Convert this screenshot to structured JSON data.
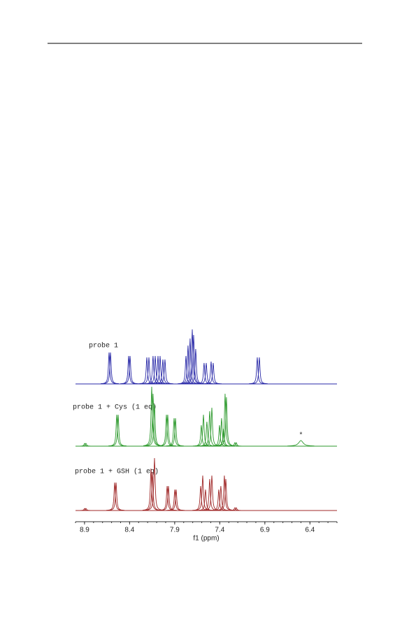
{
  "chart_data": {
    "type": "spectrum",
    "x_label": "f1 (ppm)",
    "xlim": [
      9.0,
      6.1
    ],
    "xticks": [
      8.9,
      8.4,
      7.9,
      7.4,
      6.9,
      6.4
    ],
    "series": [
      {
        "name": "probe 1",
        "color": "#2a2aa8",
        "x": [
          8.628,
          8.612,
          8.411,
          8.395,
          8.209,
          8.186,
          8.14,
          8.116,
          8.085,
          8.062,
          8.031,
          8.008,
          7.775,
          7.752,
          7.729,
          7.705,
          7.69,
          7.667,
          7.574,
          7.55,
          7.496,
          7.473,
          6.984,
          6.961
        ],
        "values": [
          45,
          45,
          40,
          40,
          38,
          38,
          40,
          40,
          40,
          40,
          35,
          35,
          40,
          55,
          65,
          78,
          70,
          50,
          30,
          30,
          32,
          30,
          38,
          38
        ]
      },
      {
        "name": "probe 1 + Cys (1 eq)",
        "color": "#2e9a2e",
        "x": [
          8.899,
          8.884,
          8.543,
          8.527,
          8.155,
          8.14,
          8.124,
          7.992,
          7.977,
          7.907,
          7.891,
          7.605,
          7.581,
          7.543,
          7.512,
          7.488,
          7.403,
          7.38,
          7.357,
          7.341,
          7.326,
          7.233,
          7.217
        ],
        "values": [
          4,
          4,
          45,
          45,
          85,
          75,
          60,
          45,
          45,
          40,
          40,
          30,
          45,
          35,
          50,
          55,
          30,
          40,
          25,
          75,
          70,
          5,
          5
        ],
        "broad_peak": {
          "x": 6.5,
          "value": 8,
          "width": 0.06,
          "label": "*"
        }
      },
      {
        "name": "probe 1 + GSH (1 eq)",
        "color": "#a02828",
        "x": [
          8.899,
          8.884,
          8.566,
          8.55,
          8.163,
          8.147,
          8.124,
          7.984,
          7.969,
          7.899,
          7.884,
          7.612,
          7.589,
          7.558,
          7.512,
          7.488,
          7.411,
          7.388,
          7.349,
          7.333,
          7.233,
          7.217
        ],
        "values": [
          3,
          3,
          40,
          40,
          60,
          55,
          75,
          35,
          35,
          30,
          30,
          35,
          50,
          30,
          45,
          50,
          30,
          35,
          50,
          45,
          4,
          4
        ]
      }
    ]
  }
}
